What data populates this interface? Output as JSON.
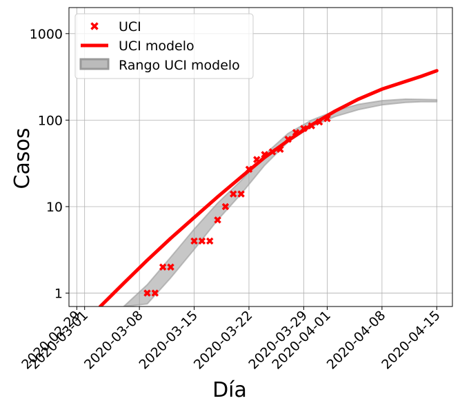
{
  "chart_data": {
    "type": "line",
    "title": "",
    "xlabel": "Día",
    "ylabel": "Casos",
    "y_scale": "log",
    "ylim": [
      0.7,
      2000
    ],
    "xlim": [
      "2020-02-28",
      "2020-04-17"
    ],
    "grid": true,
    "legend_position": "top-left",
    "x_tick_labels": [
      "2020-02-29",
      "2020-03-01",
      "2020-03-08",
      "2020-03-15",
      "2020-03-22",
      "2020-03-29",
      "2020-04-01",
      "2020-04-08",
      "2020-04-15"
    ],
    "y_tick_labels": [
      "1",
      "10",
      "100",
      "1000"
    ],
    "y_ticks": [
      1,
      10,
      100,
      1000
    ],
    "colors": {
      "observed": "#ff0000",
      "model": "#ff0000",
      "range": "#999999"
    },
    "series": [
      {
        "name": "UCI",
        "kind": "markers",
        "marker": "x",
        "points": [
          [
            "2020-03-09",
            1
          ],
          [
            "2020-03-10",
            1
          ],
          [
            "2020-03-11",
            2
          ],
          [
            "2020-03-12",
            2
          ],
          [
            "2020-03-15",
            4
          ],
          [
            "2020-03-16",
            4
          ],
          [
            "2020-03-17",
            4
          ],
          [
            "2020-03-18",
            7
          ],
          [
            "2020-03-19",
            10
          ],
          [
            "2020-03-20",
            14
          ],
          [
            "2020-03-21",
            14
          ],
          [
            "2020-03-22",
            27
          ],
          [
            "2020-03-23",
            35
          ],
          [
            "2020-03-24",
            40
          ],
          [
            "2020-03-25",
            43
          ],
          [
            "2020-03-26",
            46
          ],
          [
            "2020-03-27",
            60
          ],
          [
            "2020-03-28",
            72
          ],
          [
            "2020-03-29",
            80
          ],
          [
            "2020-03-30",
            86
          ],
          [
            "2020-03-31",
            95
          ],
          [
            "2020-04-01",
            104
          ]
        ]
      },
      {
        "name": "UCI modelo",
        "kind": "line",
        "points": [
          [
            "2020-03-03",
            0.7
          ],
          [
            "2020-03-06",
            1.3
          ],
          [
            "2020-03-09",
            2.4
          ],
          [
            "2020-03-12",
            4.3
          ],
          [
            "2020-03-15",
            7.5
          ],
          [
            "2020-03-18",
            13
          ],
          [
            "2020-03-21",
            22
          ],
          [
            "2020-03-24",
            37
          ],
          [
            "2020-03-27",
            58
          ],
          [
            "2020-03-30",
            88
          ],
          [
            "2020-04-02",
            127
          ],
          [
            "2020-04-05",
            175
          ],
          [
            "2020-04-08",
            228
          ],
          [
            "2020-04-11",
            280
          ],
          [
            "2020-04-13",
            320
          ],
          [
            "2020-04-15",
            372
          ]
        ]
      },
      {
        "name": "Rango UCI modelo",
        "kind": "band",
        "upper": [
          [
            "2020-03-06",
            0.7
          ],
          [
            "2020-03-09",
            1.25
          ],
          [
            "2020-03-12",
            2.6
          ],
          [
            "2020-03-15",
            5.5
          ],
          [
            "2020-03-18",
            11
          ],
          [
            "2020-03-21",
            20
          ],
          [
            "2020-03-24",
            40
          ],
          [
            "2020-03-27",
            70
          ],
          [
            "2020-03-30",
            100
          ],
          [
            "2020-04-02",
            128
          ],
          [
            "2020-04-05",
            152
          ],
          [
            "2020-04-08",
            168
          ],
          [
            "2020-04-11",
            175
          ],
          [
            "2020-04-13",
            174
          ],
          [
            "2020-04-15",
            172
          ]
        ],
        "lower": [
          [
            "2020-03-06",
            0.7
          ],
          [
            "2020-03-09",
            0.75
          ],
          [
            "2020-03-12",
            1.5
          ],
          [
            "2020-03-15",
            3.2
          ],
          [
            "2020-03-18",
            7
          ],
          [
            "2020-03-21",
            14
          ],
          [
            "2020-03-24",
            30
          ],
          [
            "2020-03-27",
            56
          ],
          [
            "2020-03-30",
            84
          ],
          [
            "2020-04-02",
            110
          ],
          [
            "2020-04-05",
            132
          ],
          [
            "2020-04-08",
            150
          ],
          [
            "2020-04-11",
            160
          ],
          [
            "2020-04-13",
            163
          ],
          [
            "2020-04-15",
            163
          ]
        ]
      }
    ]
  }
}
